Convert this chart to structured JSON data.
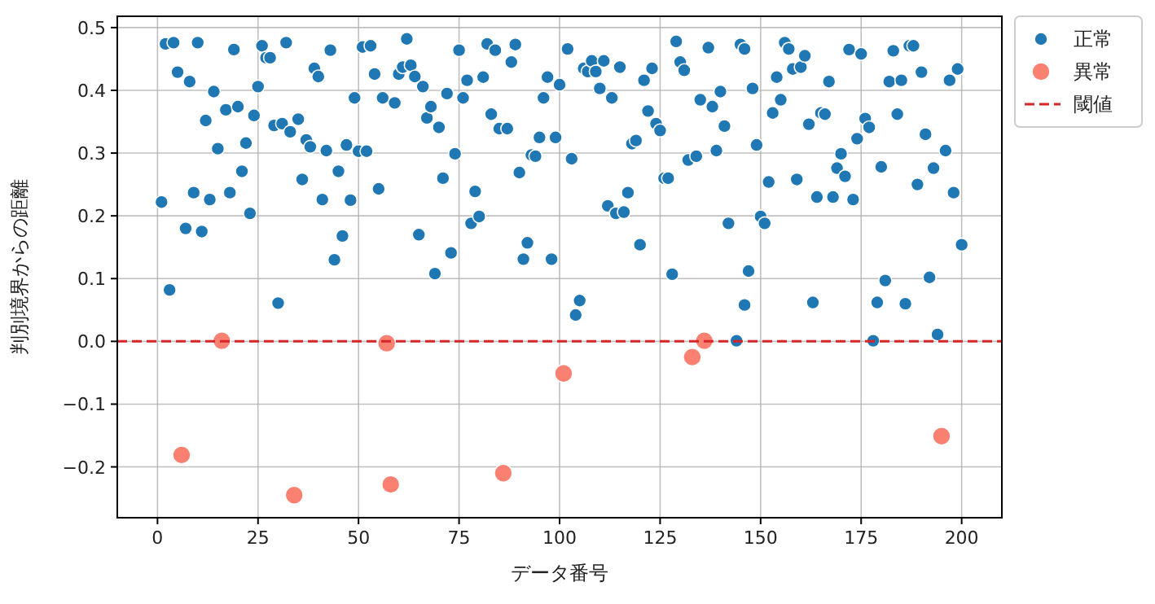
{
  "chart_data": {
    "type": "scatter",
    "xlabel": "データ番号",
    "ylabel": "判別境界からの距離",
    "xlim": [
      -10,
      210
    ],
    "ylim": [
      -0.281,
      0.518
    ],
    "xticks": [
      0,
      25,
      50,
      75,
      100,
      125,
      150,
      175,
      200
    ],
    "yticks": [
      {
        "value": -0.2,
        "label": "−0.2"
      },
      {
        "value": -0.1,
        "label": "−0.1"
      },
      {
        "value": 0,
        "label": "0.0"
      },
      0.1,
      0.2,
      0.3,
      0.4,
      0.5
    ],
    "grid": true,
    "legend": "top right",
    "marker": "circle",
    "series": [
      {
        "name": "正常",
        "color": "#1f77b4",
        "x": [
          1,
          2,
          3,
          4,
          5,
          7,
          8,
          9,
          10,
          11,
          12,
          13,
          14,
          15,
          17,
          18,
          19,
          20,
          21,
          22,
          23,
          24,
          25,
          26,
          27,
          28,
          29,
          30,
          31,
          32,
          33,
          35,
          36,
          37,
          38,
          39,
          40,
          41,
          42,
          43,
          44,
          45,
          46,
          47,
          48,
          49,
          50,
          51,
          52,
          53,
          54,
          55,
          56,
          59,
          60,
          61,
          62,
          63,
          64,
          65,
          66,
          67,
          68,
          69,
          70,
          71,
          72,
          73,
          74,
          75,
          76,
          77,
          78,
          79,
          80,
          81,
          82,
          83,
          84,
          85,
          87,
          88,
          89,
          90,
          91,
          92,
          93,
          94,
          95,
          96,
          97,
          98,
          99,
          100,
          102,
          103,
          104,
          105,
          106,
          107,
          108,
          109,
          110,
          111,
          112,
          113,
          114,
          115,
          116,
          117,
          118,
          119,
          120,
          121,
          122,
          123,
          124,
          125,
          126,
          127,
          128,
          129,
          130,
          131,
          132,
          134,
          135,
          137,
          138,
          139,
          140,
          141,
          142,
          144,
          145,
          146,
          146,
          147,
          148,
          149,
          150,
          151,
          152,
          153,
          154,
          155,
          156,
          157,
          158,
          160,
          161,
          159,
          162,
          163,
          164,
          165,
          166,
          167,
          168,
          169,
          170,
          171,
          172,
          173,
          174,
          175,
          176,
          177,
          178,
          179,
          180,
          181,
          182,
          183,
          184,
          185,
          186,
          187,
          188,
          189,
          190,
          191,
          192,
          193,
          194,
          196,
          197,
          198,
          199,
          200
        ],
        "values": [
          0.222,
          0.474,
          0.082,
          0.476,
          0.429,
          0.18,
          0.414,
          0.237,
          0.476,
          0.175,
          0.352,
          0.226,
          0.398,
          0.307,
          0.369,
          0.237,
          0.465,
          0.374,
          0.271,
          0.316,
          0.204,
          0.36,
          0.406,
          0.471,
          0.452,
          0.452,
          0.344,
          0.061,
          0.347,
          0.476,
          0.334,
          0.354,
          0.258,
          0.321,
          0.31,
          0.435,
          0.422,
          0.226,
          0.304,
          0.464,
          0.13,
          0.271,
          0.168,
          0.313,
          0.225,
          0.388,
          0.303,
          0.469,
          0.303,
          0.471,
          0.426,
          0.243,
          0.388,
          0.38,
          0.426,
          0.437,
          0.482,
          0.44,
          0.422,
          0.17,
          0.406,
          0.356,
          0.374,
          0.108,
          0.341,
          0.26,
          0.395,
          0.141,
          0.299,
          0.464,
          0.388,
          0.416,
          0.188,
          0.239,
          0.199,
          0.421,
          0.474,
          0.362,
          0.464,
          0.339,
          0.339,
          0.445,
          0.473,
          0.269,
          0.131,
          0.157,
          0.297,
          0.295,
          0.325,
          0.388,
          0.421,
          0.131,
          0.325,
          0.409,
          0.466,
          0.291,
          0.042,
          0.065,
          0.435,
          0.43,
          0.447,
          0.43,
          0.403,
          0.447,
          0.216,
          0.388,
          0.204,
          0.437,
          0.206,
          0.237,
          0.315,
          0.32,
          0.154,
          0.416,
          0.367,
          0.435,
          0.347,
          0.336,
          0.26,
          0.26,
          0.107,
          0.478,
          0.445,
          0.432,
          0.289,
          0.295,
          0.385,
          0.468,
          0.374,
          0.304,
          0.398,
          0.343,
          0.188,
          0.001,
          0.473,
          0.466,
          0.058,
          0.112,
          0.403,
          0.313,
          0.199,
          0.188,
          0.254,
          0.364,
          0.421,
          0.385,
          0.476,
          0.466,
          0.434,
          0.437,
          0.455,
          0.258,
          0.346,
          0.062,
          0.23,
          0.364,
          0.362,
          0.414,
          0.23,
          0.276,
          0.299,
          0.263,
          0.465,
          0.226,
          0.323,
          0.458,
          0.355,
          0.341,
          0.001,
          0.062,
          0.278,
          0.097,
          0.414,
          0.463,
          0.362,
          0.416,
          0.06,
          0.471,
          0.471,
          0.25,
          0.429,
          0.33,
          0.102,
          0.276,
          0.011,
          0.304,
          0.416,
          0.237,
          0.434,
          0.154
        ]
      },
      {
        "name": "異常",
        "color": "#fa8072",
        "x": [
          6,
          16,
          34,
          57,
          58,
          86,
          101,
          133,
          136,
          195
        ],
        "values": [
          -0.181,
          0.001,
          -0.245,
          -0.003,
          -0.228,
          -0.21,
          -0.051,
          -0.025,
          0.001,
          -0.151
        ]
      }
    ],
    "ref_lines": [
      {
        "axis": "y",
        "value": 0,
        "label": "閾値",
        "color": "#d62728",
        "line_style": "dashed"
      }
    ]
  }
}
